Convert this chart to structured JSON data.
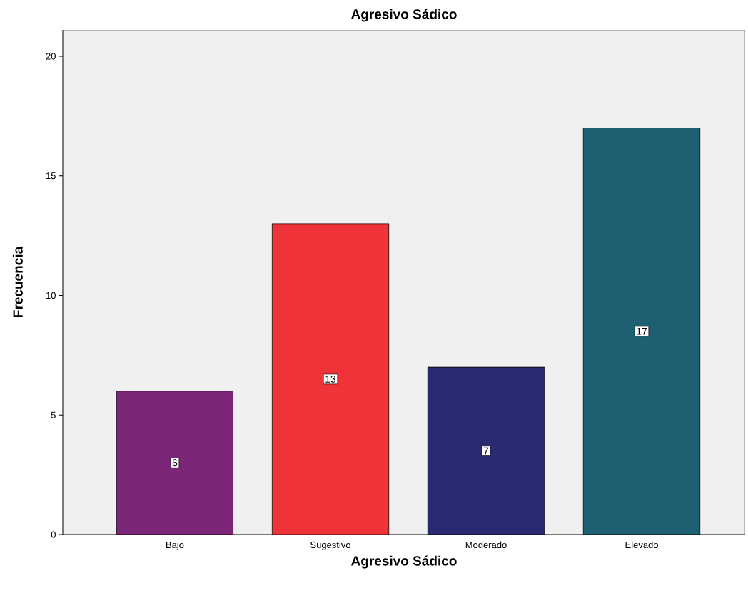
{
  "chart_data": {
    "type": "bar",
    "title": "Agresivo Sádico",
    "xlabel": "Agresivo Sádico",
    "ylabel": "Frecuencia",
    "categories": [
      "Bajo",
      "Sugestivo",
      "Moderado",
      "Elevado"
    ],
    "values": [
      6,
      13,
      7,
      17
    ],
    "colors": [
      "#7b2677",
      "#ef3338",
      "#2a2a72",
      "#1e5f72"
    ],
    "ylim": [
      0,
      21.1
    ],
    "yticks": [
      0,
      5,
      10,
      15,
      20
    ],
    "data_labels": true,
    "grid": false
  }
}
